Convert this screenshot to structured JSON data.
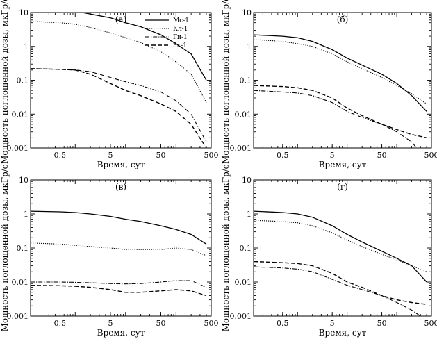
{
  "figure": {
    "ylabel": "Мощность поглощенной дозы, мкГр/с",
    "xlabel": "Время, сут"
  },
  "legend": {
    "entries": [
      "Мс-1",
      "Кл-1",
      "Ги-1",
      "Зк-1"
    ]
  },
  "chart_data": [
    {
      "type": "line",
      "panel_label": "(а)",
      "xlabel": "Время, сут",
      "ylabel": "Мощность поглощенной дозы, мкГр/с",
      "xscale": "log",
      "yscale": "log",
      "xlim": [
        0.13,
        500
      ],
      "ylim": [
        0.001,
        10
      ],
      "xticks": [
        "0.5",
        "5",
        "50",
        "500"
      ],
      "yticks": [
        "0.001",
        "0.01",
        "0.1",
        "1",
        "10"
      ],
      "legend_location": "top-right",
      "series": [
        {
          "name": "Мс-1",
          "x": [
            0.13,
            0.5,
            1,
            2,
            5,
            10,
            20,
            50,
            100,
            200,
            400
          ],
          "y": [
            13,
            12,
            11,
            9,
            7,
            5,
            3.8,
            2.2,
            1.2,
            0.6,
            0.1
          ]
        },
        {
          "name": "Кл-1",
          "x": [
            0.13,
            0.5,
            1,
            2,
            5,
            10,
            20,
            50,
            100,
            200,
            400
          ],
          "y": [
            5.5,
            5,
            4.5,
            3.6,
            2.5,
            1.8,
            1.3,
            0.7,
            0.35,
            0.15,
            0.022
          ]
        },
        {
          "name": "Ги-1",
          "x": [
            0.13,
            0.5,
            1,
            2,
            5,
            10,
            20,
            50,
            100,
            200,
            400
          ],
          "y": [
            0.22,
            0.21,
            0.2,
            0.18,
            0.12,
            0.09,
            0.07,
            0.045,
            0.025,
            0.01,
            0.0015
          ]
        },
        {
          "name": "Зк-1",
          "x": [
            0.13,
            0.5,
            1,
            2,
            5,
            10,
            20,
            50,
            100,
            200,
            400
          ],
          "y": [
            0.22,
            0.21,
            0.2,
            0.15,
            0.08,
            0.05,
            0.035,
            0.02,
            0.012,
            0.005,
            0.001
          ]
        }
      ]
    },
    {
      "type": "line",
      "panel_label": "(б)",
      "xlabel": "Время, сут",
      "ylabel": "Мощность поглощенной дозы, мкГр/с",
      "xscale": "log",
      "yscale": "log",
      "xlim": [
        0.13,
        500
      ],
      "ylim": [
        0.001,
        10
      ],
      "xticks": [
        "0.5",
        "5",
        "50",
        "500"
      ],
      "yticks": [
        "0.001",
        "0.01",
        "0.1",
        "1",
        "10"
      ],
      "series": [
        {
          "name": "Мс-1",
          "x": [
            0.13,
            0.5,
            1,
            2,
            5,
            10,
            20,
            50,
            100,
            200,
            400
          ],
          "y": [
            2.2,
            2,
            1.8,
            1.4,
            0.8,
            0.45,
            0.28,
            0.15,
            0.08,
            0.035,
            0.012
          ]
        },
        {
          "name": "Кл-1",
          "x": [
            0.13,
            0.5,
            1,
            2,
            5,
            10,
            20,
            50,
            100,
            200,
            400
          ],
          "y": [
            1.6,
            1.4,
            1.2,
            1,
            0.6,
            0.35,
            0.22,
            0.12,
            0.07,
            0.04,
            0.02
          ]
        },
        {
          "name": "Ги-1",
          "x": [
            0.13,
            0.5,
            1,
            2,
            5,
            10,
            20,
            50,
            100,
            200,
            250
          ],
          "y": [
            0.05,
            0.045,
            0.042,
            0.035,
            0.022,
            0.012,
            0.008,
            0.005,
            0.003,
            0.0015,
            0.001
          ]
        },
        {
          "name": "Зк-1",
          "x": [
            0.13,
            0.5,
            1,
            2,
            5,
            10,
            20,
            50,
            100,
            200,
            400
          ],
          "y": [
            0.07,
            0.065,
            0.06,
            0.05,
            0.03,
            0.015,
            0.009,
            0.005,
            0.0035,
            0.0025,
            0.002
          ]
        }
      ]
    },
    {
      "type": "line",
      "panel_label": "(в)",
      "xlabel": "Время, сут",
      "ylabel": "Мощность поглощенной дозы, мкГр/с",
      "xscale": "log",
      "yscale": "log",
      "xlim": [
        0.13,
        500
      ],
      "ylim": [
        0.001,
        10
      ],
      "xticks": [
        "0.5",
        "5",
        "50",
        "500"
      ],
      "yticks": [
        "0.001",
        "0.01",
        "0.1",
        "1",
        "10"
      ],
      "series": [
        {
          "name": "Мс-1",
          "x": [
            0.13,
            0.5,
            1,
            2,
            5,
            10,
            20,
            50,
            100,
            200,
            400
          ],
          "y": [
            1.2,
            1.15,
            1.1,
            1,
            0.85,
            0.7,
            0.6,
            0.45,
            0.35,
            0.25,
            0.13
          ]
        },
        {
          "name": "Кл-1",
          "x": [
            0.13,
            0.5,
            1,
            2,
            5,
            10,
            20,
            50,
            100,
            200,
            400
          ],
          "y": [
            0.14,
            0.13,
            0.12,
            0.11,
            0.1,
            0.09,
            0.09,
            0.09,
            0.1,
            0.09,
            0.06
          ]
        },
        {
          "name": "Ги-1",
          "x": [
            0.13,
            0.5,
            1,
            2,
            5,
            10,
            20,
            50,
            100,
            200,
            400
          ],
          "y": [
            0.01,
            0.01,
            0.0098,
            0.0095,
            0.009,
            0.0088,
            0.009,
            0.01,
            0.011,
            0.011,
            0.007
          ]
        },
        {
          "name": "Зк-1",
          "x": [
            0.13,
            0.5,
            1,
            2,
            5,
            10,
            20,
            50,
            100,
            200,
            400
          ],
          "y": [
            0.008,
            0.0078,
            0.0075,
            0.007,
            0.006,
            0.005,
            0.005,
            0.0055,
            0.006,
            0.0055,
            0.004
          ]
        }
      ]
    },
    {
      "type": "line",
      "panel_label": "(г)",
      "xlabel": "Время, сут",
      "ylabel": "Мощность поглощенной дозы, мкГр/с",
      "xscale": "log",
      "yscale": "log",
      "xlim": [
        0.13,
        500
      ],
      "ylim": [
        0.001,
        10
      ],
      "xticks": [
        "0.5",
        "5",
        "50",
        "500"
      ],
      "yticks": [
        "0.001",
        "0.01",
        "0.1",
        "1",
        "10"
      ],
      "series": [
        {
          "name": "Мс-1",
          "x": [
            0.13,
            0.5,
            1,
            2,
            5,
            10,
            20,
            50,
            100,
            200,
            400
          ],
          "y": [
            1.2,
            1.1,
            1,
            0.8,
            0.45,
            0.25,
            0.15,
            0.08,
            0.05,
            0.03,
            0.01
          ]
        },
        {
          "name": "Кл-1",
          "x": [
            0.13,
            0.5,
            1,
            2,
            5,
            10,
            20,
            50,
            100,
            200,
            400
          ],
          "y": [
            0.65,
            0.6,
            0.55,
            0.45,
            0.28,
            0.17,
            0.11,
            0.065,
            0.045,
            0.03,
            0.02
          ]
        },
        {
          "name": "Ги-1",
          "x": [
            0.13,
            0.5,
            1,
            2,
            5,
            10,
            20,
            50,
            100,
            200,
            300
          ],
          "y": [
            0.028,
            0.026,
            0.024,
            0.02,
            0.012,
            0.008,
            0.006,
            0.004,
            0.0025,
            0.0015,
            0.001
          ]
        },
        {
          "name": "Зк-1",
          "x": [
            0.13,
            0.5,
            1,
            2,
            5,
            10,
            20,
            50,
            100,
            200,
            400
          ],
          "y": [
            0.04,
            0.037,
            0.035,
            0.03,
            0.018,
            0.01,
            0.007,
            0.004,
            0.003,
            0.0025,
            0.0022
          ]
        }
      ]
    }
  ]
}
